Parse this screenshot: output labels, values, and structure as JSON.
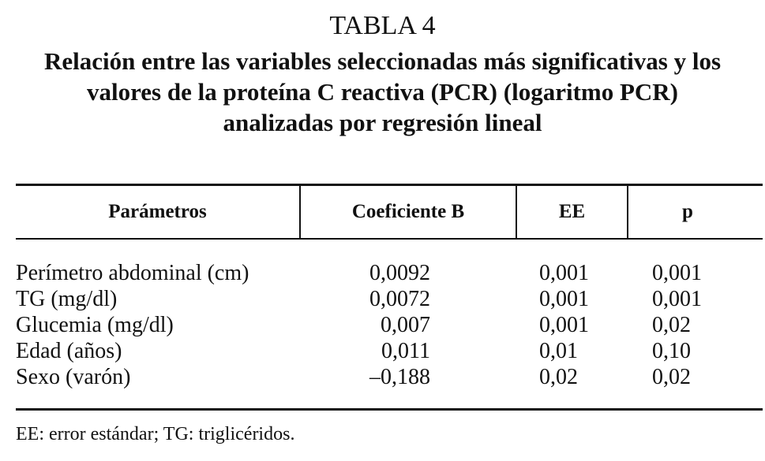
{
  "header": {
    "label": "TABLA 4",
    "title": "Relación entre las variables seleccionadas más significativas y los valores de la proteína C reactiva (PCR) (logaritmo PCR) analizadas por regresión lineal"
  },
  "table": {
    "columns": [
      "Parámetros",
      "Coeficiente B",
      "EE",
      "p"
    ],
    "rows": [
      [
        "Perímetro abdominal (cm)",
        "0,0092",
        "0,001",
        "0,001"
      ],
      [
        "TG (mg/dl)",
        "0,0072",
        "0,001",
        "0,001"
      ],
      [
        "Glucemia (mg/dl)",
        "0,007",
        "0,001",
        "0,02"
      ],
      [
        "Edad (años)",
        "0,011",
        "0,01",
        "0,10"
      ],
      [
        "Sexo (varón)",
        "–0,188",
        "0,02",
        "0,02"
      ]
    ]
  },
  "footnote": "EE: error estándar; TG: triglicéridos."
}
